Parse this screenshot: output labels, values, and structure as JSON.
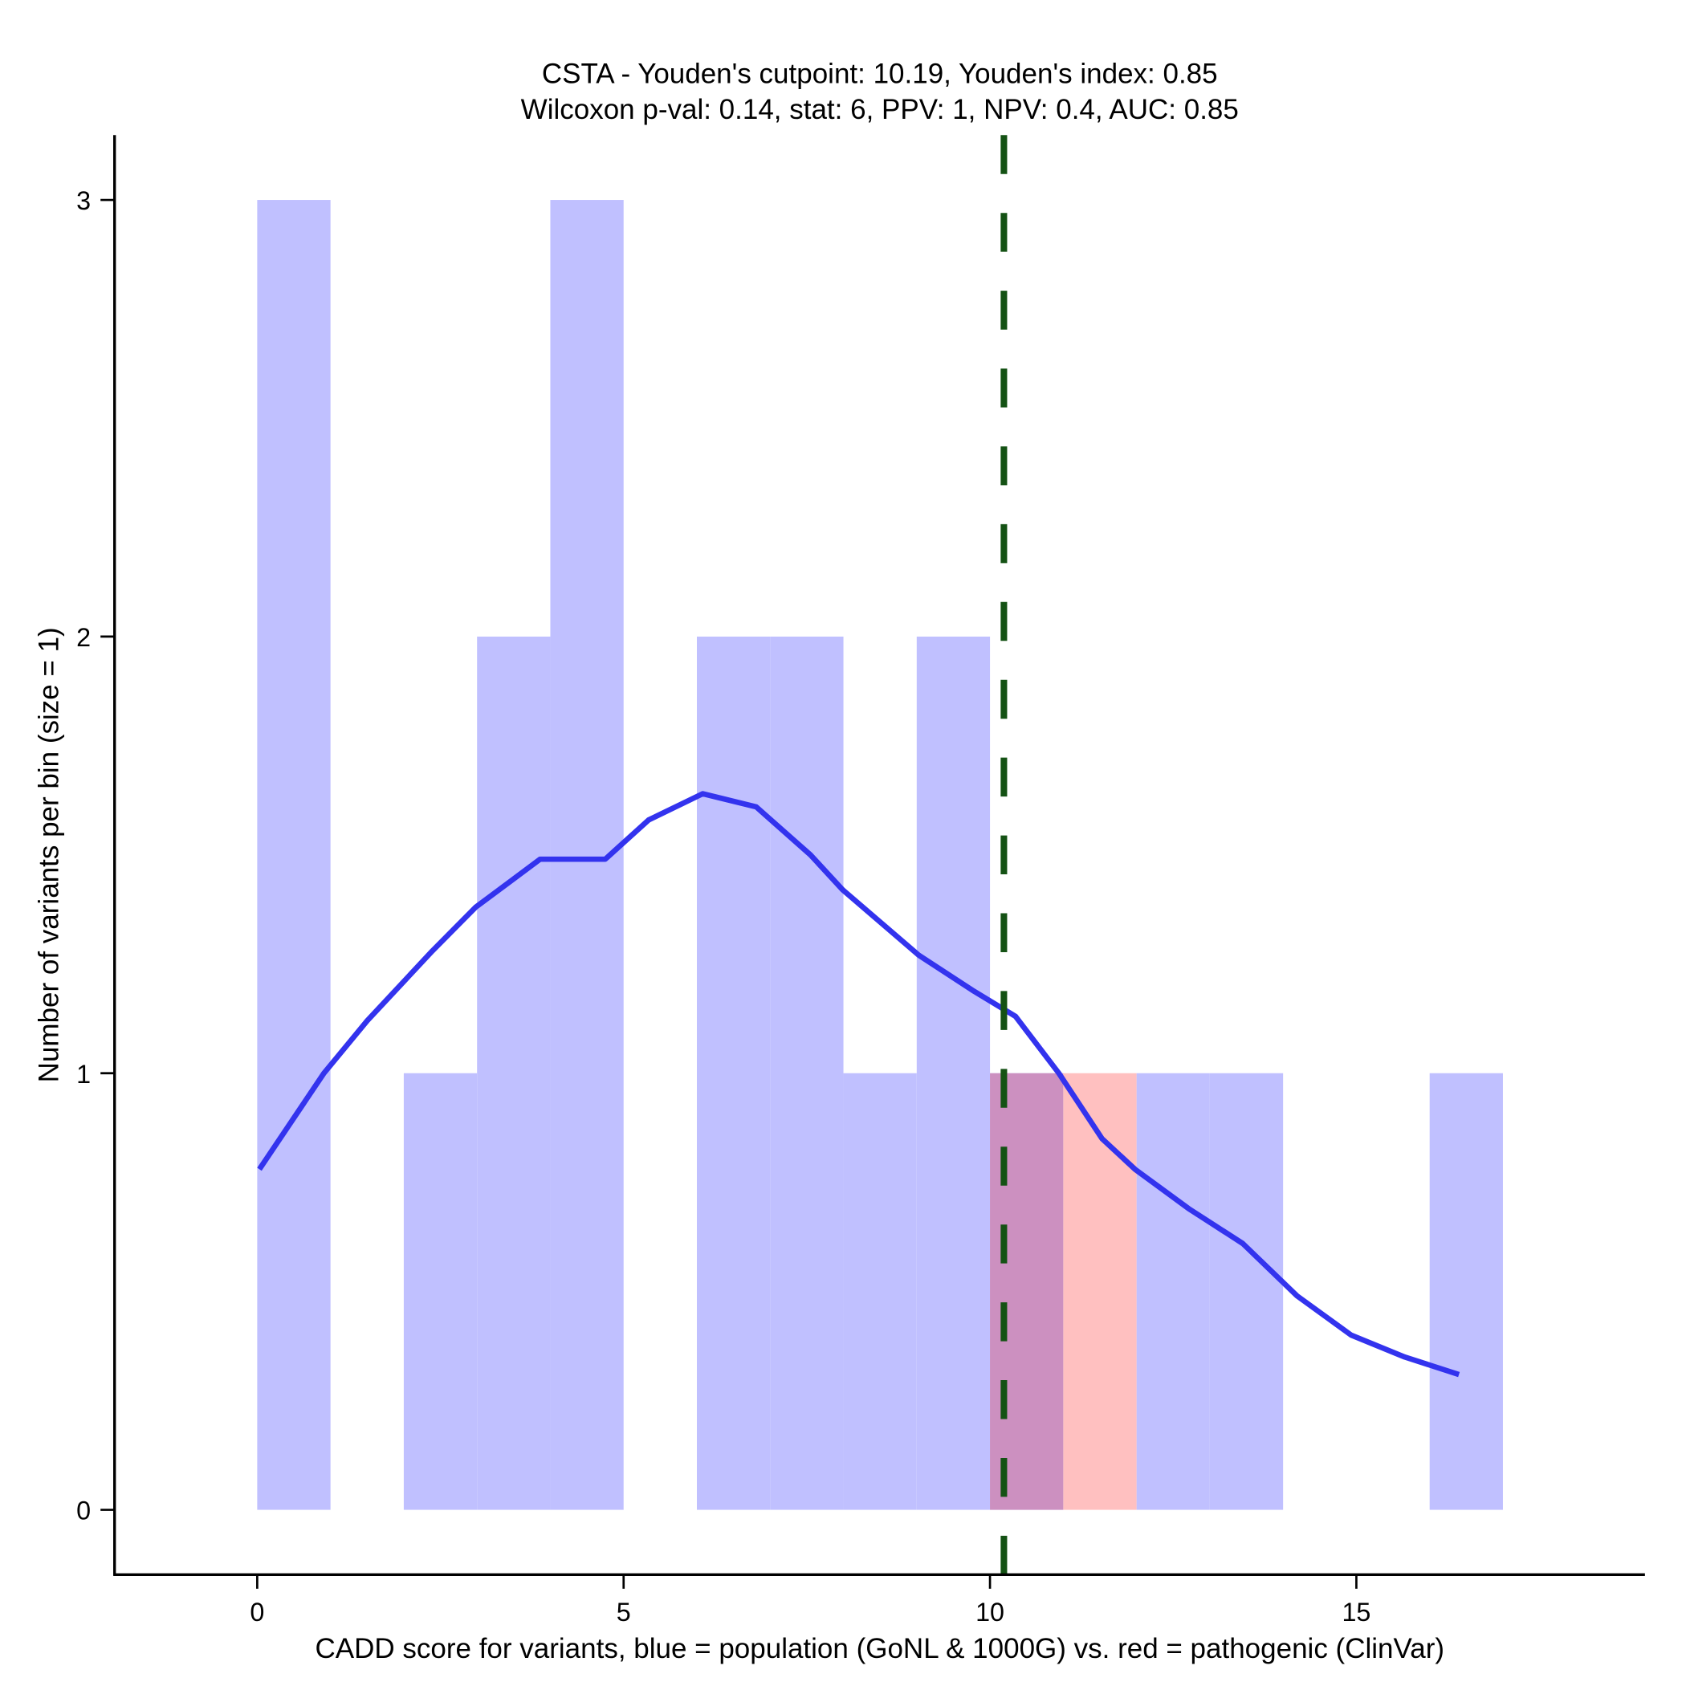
{
  "chart_data": {
    "type": "bar",
    "title_line1": "CSTA - Youden's cutpoint: 10.19, Youden's index: 0.85",
    "title_line2": "Wilcoxon p-val: 0.14, stat: 6, PPV: 1, NPV: 0.4, AUC: 0.85",
    "xlabel": "CADD score for variants, blue = population (GoNL & 1000G) vs. red = pathogenic (ClinVar)",
    "ylabel": "Number of variants per bin (size = 1)",
    "xlim": [
      -1.95,
      18.95
    ],
    "ylim": [
      -0.15,
      3.15
    ],
    "xticks": [
      0,
      5,
      10,
      15
    ],
    "yticks": [
      0,
      1,
      2,
      3
    ],
    "bin_width": 1,
    "series": [
      {
        "name": "population",
        "color": "#c0c0ff",
        "bin_starts": [
          0,
          1,
          2,
          3,
          4,
          5,
          6,
          7,
          8,
          9,
          10,
          11,
          12,
          13,
          14,
          15,
          16
        ],
        "values": [
          3,
          0,
          1,
          2,
          3,
          0,
          2,
          2,
          1,
          2,
          1,
          0,
          1,
          1,
          0,
          0,
          1
        ]
      },
      {
        "name": "pathogenic",
        "color": "#ffc0c0",
        "bin_starts": [
          10,
          11
        ],
        "values": [
          1,
          1
        ]
      }
    ],
    "overlap_color": "#cc90c0",
    "density": {
      "color": "#3333ee",
      "x": [
        0.03,
        0.91,
        1.5,
        2.39,
        2.98,
        3.86,
        4.45,
        4.75,
        5.34,
        6.08,
        6.81,
        7.55,
        7.99,
        9.03,
        9.76,
        10.35,
        10.94,
        11.53,
        11.98,
        12.71,
        13.45,
        14.19,
        14.93,
        15.66,
        16.4
      ],
      "y": [
        0.78,
        1.0,
        1.12,
        1.28,
        1.38,
        1.49,
        1.49,
        1.49,
        1.58,
        1.64,
        1.61,
        1.5,
        1.42,
        1.27,
        1.19,
        1.13,
        1.0,
        0.85,
        0.78,
        0.69,
        0.61,
        0.49,
        0.4,
        0.35,
        0.31
      ]
    },
    "cutpoint": {
      "value": 10.19,
      "color": "#145214"
    }
  }
}
